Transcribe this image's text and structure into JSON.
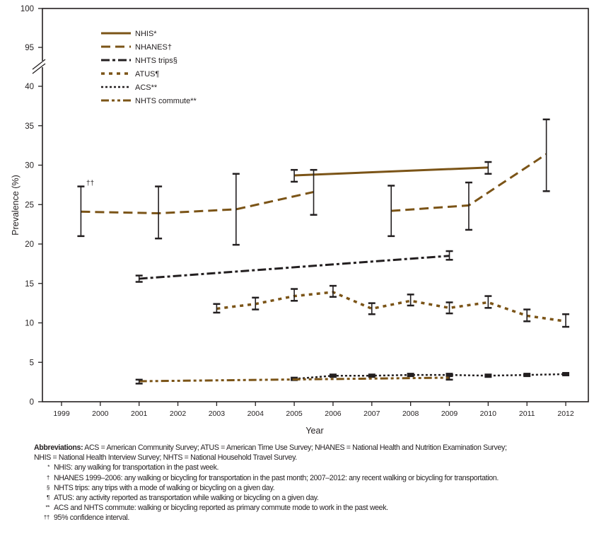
{
  "chart_data": {
    "type": "line",
    "xlabel": "Year",
    "ylabel": "Prevalence (%)",
    "x_ticks": [
      "1999",
      "2000",
      "2001",
      "2002",
      "2003",
      "2004",
      "2005",
      "2006",
      "2007",
      "2008",
      "2009",
      "2010",
      "2011",
      "2012"
    ],
    "y_ticks_lower": [
      0,
      5,
      10,
      15,
      20,
      25,
      30,
      35,
      40
    ],
    "y_ticks_upper": [
      95,
      100
    ],
    "ylim": [
      0,
      100
    ],
    "y_axis_break": [
      40,
      95
    ],
    "grid": false,
    "legend_position": "top-left",
    "ci_marker": "††",
    "colors": {
      "brown": "#7b5417",
      "black": "#231f20",
      "ci_marker": "#a0182b"
    },
    "series": [
      {
        "name": "NHIS*",
        "style": "solid",
        "color": "#7b5417",
        "x": [
          2005,
          2010
        ],
        "y": [
          28.7,
          29.7
        ],
        "ci_low": [
          27.9,
          28.9
        ],
        "ci_high": [
          29.4,
          30.4
        ]
      },
      {
        "name": "NHANES†",
        "style": "dashed",
        "color": "#7b5417",
        "segments": [
          [
            0,
            1,
            2,
            3
          ],
          [
            4,
            5,
            6
          ]
        ],
        "x": [
          1999.5,
          2001.5,
          2003.5,
          2005.5,
          2007.5,
          2009.5,
          2011.5
        ],
        "y": [
          24.1,
          23.9,
          24.4,
          26.6,
          24.2,
          24.9,
          31.4
        ],
        "ci_low": [
          21.0,
          20.7,
          19.9,
          23.7,
          21.0,
          21.8,
          26.7
        ],
        "ci_high": [
          27.3,
          27.3,
          28.9,
          29.4,
          27.4,
          27.8,
          35.8
        ]
      },
      {
        "name": "NHTS trips§",
        "style": "dashdot",
        "color": "#231f20",
        "x": [
          2001,
          2009
        ],
        "y": [
          15.6,
          18.5
        ],
        "ci_low": [
          15.2,
          18.0
        ],
        "ci_high": [
          16.0,
          19.1
        ]
      },
      {
        "name": "ATUS¶",
        "style": "dotted-wide",
        "color": "#7b5417",
        "x": [
          2003,
          2004,
          2005,
          2006,
          2007,
          2008,
          2009,
          2010,
          2011,
          2012
        ],
        "y": [
          11.8,
          12.4,
          13.4,
          13.9,
          11.8,
          12.8,
          11.9,
          12.6,
          10.9,
          10.2
        ],
        "ci_low": [
          11.3,
          11.7,
          12.8,
          13.3,
          11.1,
          12.2,
          11.2,
          11.9,
          10.2,
          9.5
        ],
        "ci_high": [
          12.4,
          13.2,
          14.3,
          14.7,
          12.5,
          13.6,
          12.6,
          13.4,
          11.7,
          11.1
        ]
      },
      {
        "name": "ACS**",
        "style": "dotted",
        "color": "#231f20",
        "x": [
          2005,
          2006,
          2007,
          2008,
          2009,
          2010,
          2011,
          2012
        ],
        "y": [
          2.9,
          3.3,
          3.3,
          3.4,
          3.4,
          3.3,
          3.4,
          3.5
        ],
        "ci_low": [
          2.8,
          3.2,
          3.2,
          3.3,
          3.3,
          3.2,
          3.3,
          3.4
        ],
        "ci_high": [
          3.0,
          3.4,
          3.4,
          3.5,
          3.5,
          3.4,
          3.5,
          3.6
        ]
      },
      {
        "name": "NHTS commute**",
        "style": "dashdotdot",
        "color": "#7b5417",
        "x": [
          2001,
          2009
        ],
        "y": [
          2.6,
          3.05
        ],
        "ci_low": [
          2.3,
          2.8
        ],
        "ci_high": [
          2.8,
          3.3
        ]
      }
    ]
  },
  "notes": {
    "abbrev_label": "Abbreviations:",
    "abbrev_text": " ACS = American Community Survey; ATUS = American Time Use Survey; NHANES = National Health and Nutrition Examination Survey;",
    "abbrev_text2": "NHIS = National Health Interview Survey; NHTS = National Household Travel Survey.",
    "footnotes": [
      {
        "mark": "*",
        "text": "NHIS: any walking for transportation in the past week."
      },
      {
        "mark": "†",
        "text": "NHANES 1999–2006: any walking or bicycling for transportation in the past month; 2007–2012: any recent walking or bicycling for transportation."
      },
      {
        "mark": "§",
        "text": "NHTS trips: any trips with a mode of walking or bicycling on a given day."
      },
      {
        "mark": "¶",
        "text": "ATUS: any activity reported as transportation while walking or bicycling on a given day."
      },
      {
        "mark": "**",
        "text": "ACS and NHTS commute: walking or bicycling reported as primary commute mode to work in the past week."
      },
      {
        "mark": "††",
        "text": "95% confidence interval."
      }
    ]
  }
}
